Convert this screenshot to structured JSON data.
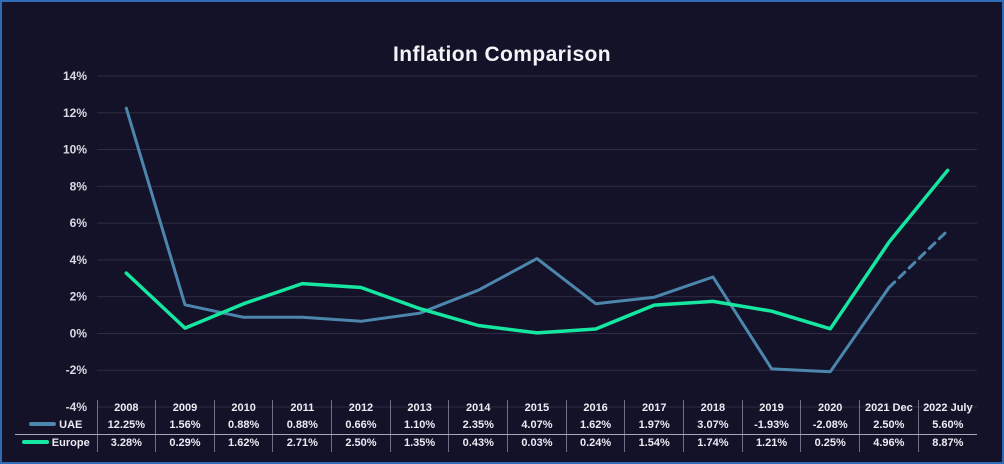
{
  "window": {
    "background_color": "#131228",
    "border_color": "#2f6cb5"
  },
  "chart_data": {
    "type": "line",
    "title": "Inflation Comparison",
    "unit": "%",
    "grid": true,
    "legend_position": "table-left",
    "categories": [
      "2008",
      "2009",
      "2010",
      "2011",
      "2012",
      "2013",
      "2014",
      "2015",
      "2016",
      "2017",
      "2018",
      "2019",
      "2020",
      "2021 Dec",
      "2022 July"
    ],
    "y_axis": {
      "min": -4,
      "max": 14,
      "tick_step": 2,
      "tick_labels": [
        "14%",
        "12%",
        "10%",
        "8%",
        "6%",
        "4%",
        "2%",
        "0%",
        "-2%",
        "-4%"
      ]
    },
    "series": [
      {
        "name": "UAE",
        "color": "#4d86ad",
        "stroke_width": 3,
        "dash_from_index": 13,
        "values": [
          12.25,
          1.56,
          0.88,
          0.88,
          0.66,
          1.1,
          2.35,
          4.07,
          1.62,
          1.97,
          3.07,
          -1.93,
          -2.08,
          2.5,
          5.6
        ]
      },
      {
        "name": "Europe",
        "color": "#16e7a0",
        "stroke_width": 3.5,
        "dash_from_index": null,
        "values": [
          3.28,
          0.29,
          1.62,
          2.71,
          2.5,
          1.35,
          0.43,
          0.03,
          0.24,
          1.54,
          1.74,
          1.21,
          0.25,
          4.96,
          8.87
        ]
      }
    ]
  }
}
